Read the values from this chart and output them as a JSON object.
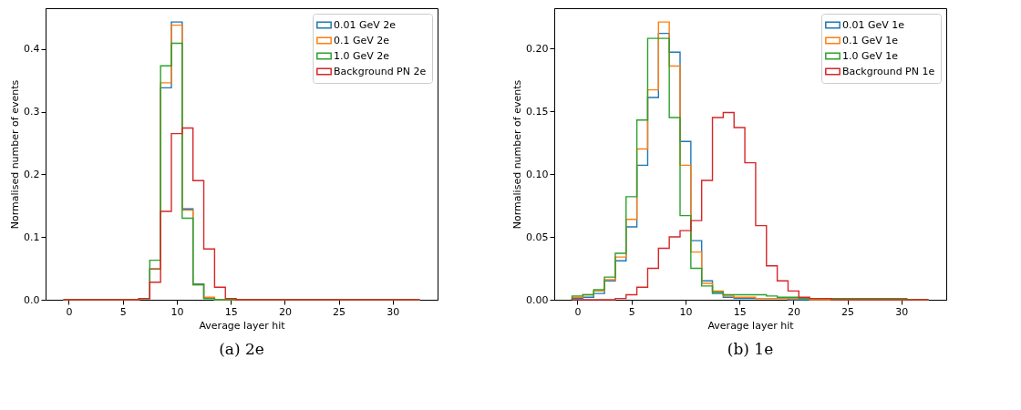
{
  "chart_data": [
    {
      "type": "histogram",
      "title": "(a) 2e",
      "xlabel": "Average layer hit",
      "ylabel": "Normalised number of events",
      "bins": [
        -0.5,
        0.5,
        1.5,
        2.5,
        3.5,
        4.5,
        5.5,
        6.5,
        7.5,
        8.5,
        9.5,
        10.5,
        11.5,
        12.5,
        13.5,
        14.5,
        15.5,
        16.5,
        17.5,
        18.5,
        19.5,
        20.5,
        21.5,
        22.5,
        23.5,
        24.5,
        25.5,
        26.5,
        27.5,
        28.5,
        29.5,
        30.5,
        31.5,
        32.5
      ],
      "series": [
        {
          "name": "0.01 GeV 2e",
          "color": "#1f77b4",
          "values": [
            0,
            0,
            0,
            0,
            0,
            0,
            0,
            0.002,
            0.049,
            0.338,
            0.443,
            0.145,
            0.025,
            0.002,
            0,
            0,
            0,
            0,
            0,
            0,
            0,
            0,
            0,
            0,
            0,
            0,
            0,
            0,
            0,
            0,
            0,
            0,
            0
          ]
        },
        {
          "name": "0.1 GeV 2e",
          "color": "#ff7f0e",
          "values": [
            0,
            0,
            0,
            0,
            0,
            0,
            0,
            0.002,
            0.05,
            0.346,
            0.438,
            0.143,
            0.024,
            0.004,
            0,
            0,
            0,
            0,
            0,
            0,
            0,
            0,
            0,
            0,
            0,
            0,
            0,
            0,
            0,
            0,
            0,
            0,
            0
          ]
        },
        {
          "name": "1.0 GeV 2e",
          "color": "#2ca02c",
          "values": [
            0,
            0,
            0,
            0,
            0,
            0,
            0,
            0.002,
            0.063,
            0.373,
            0.409,
            0.13,
            0.024,
            0.002,
            0,
            0,
            0,
            0,
            0,
            0,
            0,
            0,
            0,
            0,
            0,
            0,
            0,
            0,
            0,
            0,
            0,
            0,
            0
          ]
        },
        {
          "name": "Background PN 2e",
          "color": "#d62728",
          "values": [
            0,
            0,
            0,
            0,
            0,
            0,
            0,
            0.002,
            0.028,
            0.141,
            0.265,
            0.274,
            0.19,
            0.081,
            0.02,
            0.002,
            0,
            0,
            0,
            0,
            0,
            0,
            0,
            0,
            0,
            0,
            0,
            0,
            0,
            0,
            0,
            0,
            0
          ]
        }
      ],
      "xlim": [
        -2.15,
        34.15
      ],
      "xticks": [
        0,
        5,
        10,
        15,
        20,
        25,
        30
      ],
      "ylim": [
        0,
        0.465
      ],
      "yticks": [
        {
          "value": 0,
          "label": "0.0"
        },
        0.1,
        0.2,
        0.3,
        0.4
      ],
      "legend": "top right",
      "grid": false
    },
    {
      "type": "histogram",
      "title": "(b) 1e",
      "xlabel": "Average layer hit",
      "ylabel": "Normalised number of events",
      "bins": [
        -0.5,
        0.5,
        1.5,
        2.5,
        3.5,
        4.5,
        5.5,
        6.5,
        7.5,
        8.5,
        9.5,
        10.5,
        11.5,
        12.5,
        13.5,
        14.5,
        15.5,
        16.5,
        17.5,
        18.5,
        19.5,
        20.5,
        21.5,
        22.5,
        23.5,
        24.5,
        25.5,
        26.5,
        27.5,
        28.5,
        29.5,
        30.5,
        31.5,
        32.5
      ],
      "series": [
        {
          "name": "0.01 GeV 1e",
          "color": "#1f77b4",
          "values": [
            0.001,
            0.002,
            0.005,
            0.015,
            0.031,
            0.058,
            0.107,
            0.161,
            0.212,
            0.197,
            0.126,
            0.047,
            0.015,
            0.005,
            0.002,
            0.001,
            0.001,
            0.001,
            0.001,
            0.001,
            0,
            0,
            0,
            0,
            0,
            0,
            0,
            0,
            0,
            0,
            0,
            0,
            0
          ]
        },
        {
          "name": "0.1 GeV 1e",
          "color": "#ff7f0e",
          "values": [
            0.002,
            0.004,
            0.007,
            0.016,
            0.034,
            0.064,
            0.12,
            0.167,
            0.221,
            0.186,
            0.107,
            0.038,
            0.013,
            0.007,
            0.003,
            0.002,
            0.002,
            0.001,
            0.001,
            0.001,
            0.001,
            0.001,
            0,
            0,
            0,
            0,
            0,
            0,
            0,
            0,
            0,
            0,
            0
          ]
        },
        {
          "name": "1.0 GeV 1e",
          "color": "#2ca02c",
          "values": [
            0.003,
            0.004,
            0.008,
            0.018,
            0.037,
            0.082,
            0.143,
            0.208,
            0.208,
            0.145,
            0.067,
            0.025,
            0.011,
            0.006,
            0.004,
            0.004,
            0.004,
            0.004,
            0.003,
            0.002,
            0.002,
            0.001,
            0.001,
            0.001,
            0.001,
            0.001,
            0.001,
            0.001,
            0.001,
            0.001,
            0.001,
            0,
            0
          ]
        },
        {
          "name": "Background PN 1e",
          "color": "#d62728",
          "values": [
            0,
            0,
            0,
            0,
            0.001,
            0.004,
            0.01,
            0.025,
            0.041,
            0.05,
            0.055,
            0.063,
            0.095,
            0.145,
            0.149,
            0.137,
            0.109,
            0.059,
            0.027,
            0.015,
            0.007,
            0.002,
            0.001,
            0.001,
            0,
            0,
            0,
            0,
            0,
            0,
            0,
            0,
            0
          ]
        }
      ],
      "xlim": [
        -2.15,
        34.15
      ],
      "xticks": [
        0,
        5,
        10,
        15,
        20,
        25,
        30
      ],
      "ylim": [
        0,
        0.232
      ],
      "yticks": [
        {
          "value": 0,
          "label": "0.00"
        },
        {
          "value": 0.05,
          "label": "0.05"
        },
        {
          "value": 0.1,
          "label": "0.10"
        },
        {
          "value": 0.15,
          "label": "0.15"
        },
        {
          "value": 0.2,
          "label": "0.20"
        }
      ],
      "legend": "top right",
      "grid": false
    }
  ]
}
